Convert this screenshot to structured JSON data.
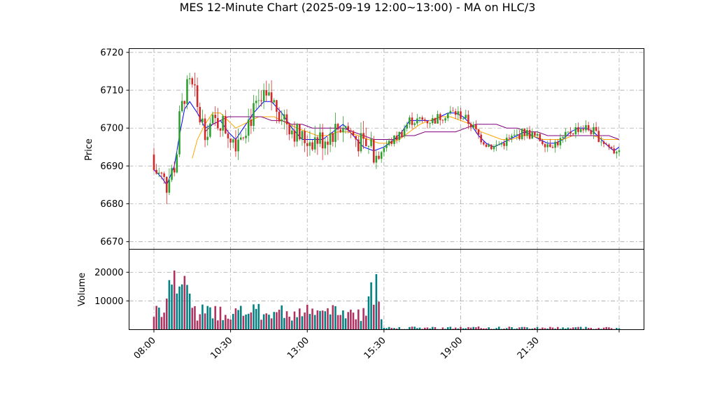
{
  "chart_data": {
    "type": "candlestick",
    "title": "MES 12-Minute Chart (2025-09-19 12:00~13:00) - MA on HLC/3",
    "price_panel": {
      "ylabel": "Price",
      "ylim": [
        6668,
        6721
      ],
      "yticks": [
        "6670",
        "6680",
        "6690",
        "6700",
        "6710",
        "6720"
      ],
      "candle_colors": {
        "up": "#2ca02c",
        "down": "#d62728"
      },
      "ma_series": [
        {
          "color": "#0000ff",
          "points": [
            [
              0,
              6689
            ],
            [
              3,
              6687
            ],
            [
              5,
              6685
            ],
            [
              8,
              6690
            ],
            [
              10,
              6698
            ],
            [
              12,
              6705
            ],
            [
              14,
              6707
            ],
            [
              17,
              6704
            ],
            [
              20,
              6700
            ],
            [
              23,
              6701
            ],
            [
              26,
              6702
            ],
            [
              29,
              6699
            ],
            [
              32,
              6697
            ],
            [
              35,
              6700
            ],
            [
              39,
              6704
            ],
            [
              43,
              6707
            ],
            [
              46,
              6707
            ],
            [
              50,
              6704
            ],
            [
              54,
              6700
            ],
            [
              58,
              6697
            ],
            [
              62,
              6697
            ],
            [
              66,
              6697
            ],
            [
              70,
              6699
            ],
            [
              74,
              6701
            ],
            [
              78,
              6698
            ],
            [
              82,
              6695
            ],
            [
              86,
              6694
            ],
            [
              90,
              6695
            ],
            [
              94,
              6697
            ],
            [
              97,
              6699
            ],
            [
              100,
              6702
            ],
            [
              103,
              6702
            ],
            [
              106,
              6702
            ],
            [
              109,
              6702
            ],
            [
              112,
              6703
            ],
            [
              115,
              6704
            ],
            [
              118,
              6704
            ],
            [
              121,
              6703
            ],
            [
              124,
              6701
            ],
            [
              127,
              6698
            ],
            [
              130,
              6696
            ],
            [
              133,
              6695
            ],
            [
              136,
              6696
            ],
            [
              139,
              6697
            ],
            [
              142,
              6698
            ],
            [
              145,
              6699
            ],
            [
              148,
              6698
            ],
            [
              151,
              6697
            ],
            [
              154,
              6696
            ],
            [
              157,
              6696
            ],
            [
              160,
              6697
            ],
            [
              163,
              6699
            ],
            [
              166,
              6700
            ],
            [
              169,
              6700
            ],
            [
              172,
              6699
            ],
            [
              175,
              6697
            ],
            [
              178,
              6695
            ],
            [
              180,
              6694
            ],
            [
              182,
              6695
            ]
          ]
        },
        {
          "color": "#ffa500",
          "points": [
            [
              15,
              6692
            ],
            [
              17,
              6697
            ],
            [
              20,
              6701
            ],
            [
              23,
              6704
            ],
            [
              26,
              6704
            ],
            [
              29,
              6702
            ],
            [
              32,
              6700
            ],
            [
              35,
              6701
            ],
            [
              38,
              6702
            ],
            [
              41,
              6703
            ],
            [
              44,
              6703
            ],
            [
              47,
              6703
            ],
            [
              50,
              6702
            ],
            [
              53,
              6701
            ],
            [
              56,
              6700
            ],
            [
              60,
              6699
            ],
            [
              64,
              6698
            ],
            [
              68,
              6698
            ],
            [
              72,
              6699
            ],
            [
              76,
              6699
            ],
            [
              80,
              6698
            ],
            [
              84,
              6697
            ],
            [
              88,
              6696
            ],
            [
              92,
              6696
            ],
            [
              96,
              6697
            ],
            [
              100,
              6699
            ],
            [
              104,
              6701
            ],
            [
              108,
              6702
            ],
            [
              112,
              6703
            ],
            [
              116,
              6703
            ],
            [
              120,
              6702
            ],
            [
              124,
              6701
            ],
            [
              128,
              6699
            ],
            [
              132,
              6698
            ],
            [
              136,
              6697
            ],
            [
              140,
              6697
            ],
            [
              144,
              6698
            ],
            [
              148,
              6698
            ],
            [
              152,
              6697
            ],
            [
              156,
              6697
            ],
            [
              160,
              6697
            ],
            [
              164,
              6698
            ],
            [
              168,
              6698
            ],
            [
              172,
              6698
            ],
            [
              176,
              6697
            ],
            [
              180,
              6697
            ],
            [
              182,
              6697
            ]
          ]
        },
        {
          "color": "#800080",
          "points": [
            [
              20,
              6699
            ],
            [
              23,
              6701
            ],
            [
              26,
              6702
            ],
            [
              29,
              6703
            ],
            [
              32,
              6703
            ],
            [
              35,
              6703
            ],
            [
              38,
              6703
            ],
            [
              42,
              6703
            ],
            [
              46,
              6702
            ],
            [
              50,
              6702
            ],
            [
              54,
              6701
            ],
            [
              58,
              6701
            ],
            [
              62,
              6700
            ],
            [
              66,
              6700
            ],
            [
              70,
              6700
            ],
            [
              74,
              6700
            ],
            [
              78,
              6699
            ],
            [
              82,
              6698
            ],
            [
              86,
              6697
            ],
            [
              90,
              6697
            ],
            [
              94,
              6697
            ],
            [
              98,
              6698
            ],
            [
              102,
              6698
            ],
            [
              106,
              6699
            ],
            [
              110,
              6699
            ],
            [
              114,
              6699
            ],
            [
              118,
              6699
            ],
            [
              122,
              6700
            ],
            [
              126,
              6701
            ],
            [
              130,
              6701
            ],
            [
              134,
              6701
            ],
            [
              138,
              6700
            ],
            [
              142,
              6700
            ],
            [
              146,
              6699
            ],
            [
              150,
              6699
            ],
            [
              154,
              6698
            ],
            [
              158,
              6698
            ],
            [
              162,
              6698
            ],
            [
              166,
              6698
            ],
            [
              170,
              6698
            ],
            [
              174,
              6698
            ],
            [
              178,
              6698
            ],
            [
              182,
              6697
            ]
          ]
        }
      ]
    },
    "volume_panel": {
      "ylabel": "Volume",
      "ylim": [
        0,
        28000
      ],
      "yticks": [
        "10000",
        "20000"
      ]
    },
    "x_axis": {
      "count": 183,
      "ticks": [
        {
          "index": 0,
          "label": "08:00"
        },
        {
          "index": 30,
          "label": "10:30"
        },
        {
          "index": 60,
          "label": "13:00"
        },
        {
          "index": 90,
          "label": "15:30"
        },
        {
          "index": 120,
          "label": "19:00"
        },
        {
          "index": 150,
          "label": "21:30"
        },
        {
          "index": 182,
          "label": ""
        }
      ]
    }
  }
}
